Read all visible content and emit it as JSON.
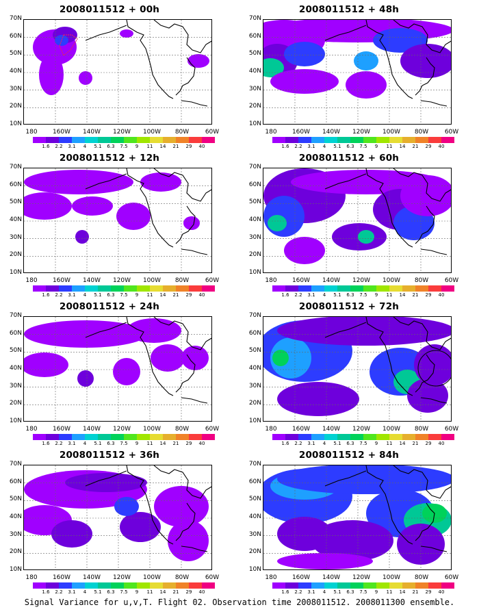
{
  "caption": "Signal Variance for u,v,T. Flight 02. Observation time 2008011512. 2008011300 ensemble.",
  "axes": {
    "lat_labels": [
      "70N",
      "60N",
      "50N",
      "40N",
      "30N",
      "20N",
      "10N"
    ],
    "lon_labels": [
      "180",
      "160W",
      "140W",
      "120W",
      "100W",
      "80W",
      "60W"
    ]
  },
  "colorbar": {
    "labels": [
      "1.6",
      "2.2",
      "3.1",
      "4",
      "5.1",
      "6.3",
      "7.5",
      "9",
      "11",
      "14",
      "21",
      "29",
      "40"
    ],
    "colors": [
      "#a000ff",
      "#6e00dc",
      "#2d3cff",
      "#1ea0ff",
      "#00d2d2",
      "#00c896",
      "#00d25a",
      "#50e61e",
      "#a0e600",
      "#e6dc32",
      "#e6af2d",
      "#f08228",
      "#fa3c3c",
      "#f00082"
    ]
  },
  "panels": [
    {
      "title": "2008011512 + 00h"
    },
    {
      "title": "2008011512 + 48h"
    },
    {
      "title": "2008011512 + 12h"
    },
    {
      "title": "2008011512 + 60h"
    },
    {
      "title": "2008011512 + 24h"
    },
    {
      "title": "2008011512 + 72h"
    },
    {
      "title": "2008011512 + 36h"
    },
    {
      "title": "2008011512 + 84h"
    }
  ]
}
